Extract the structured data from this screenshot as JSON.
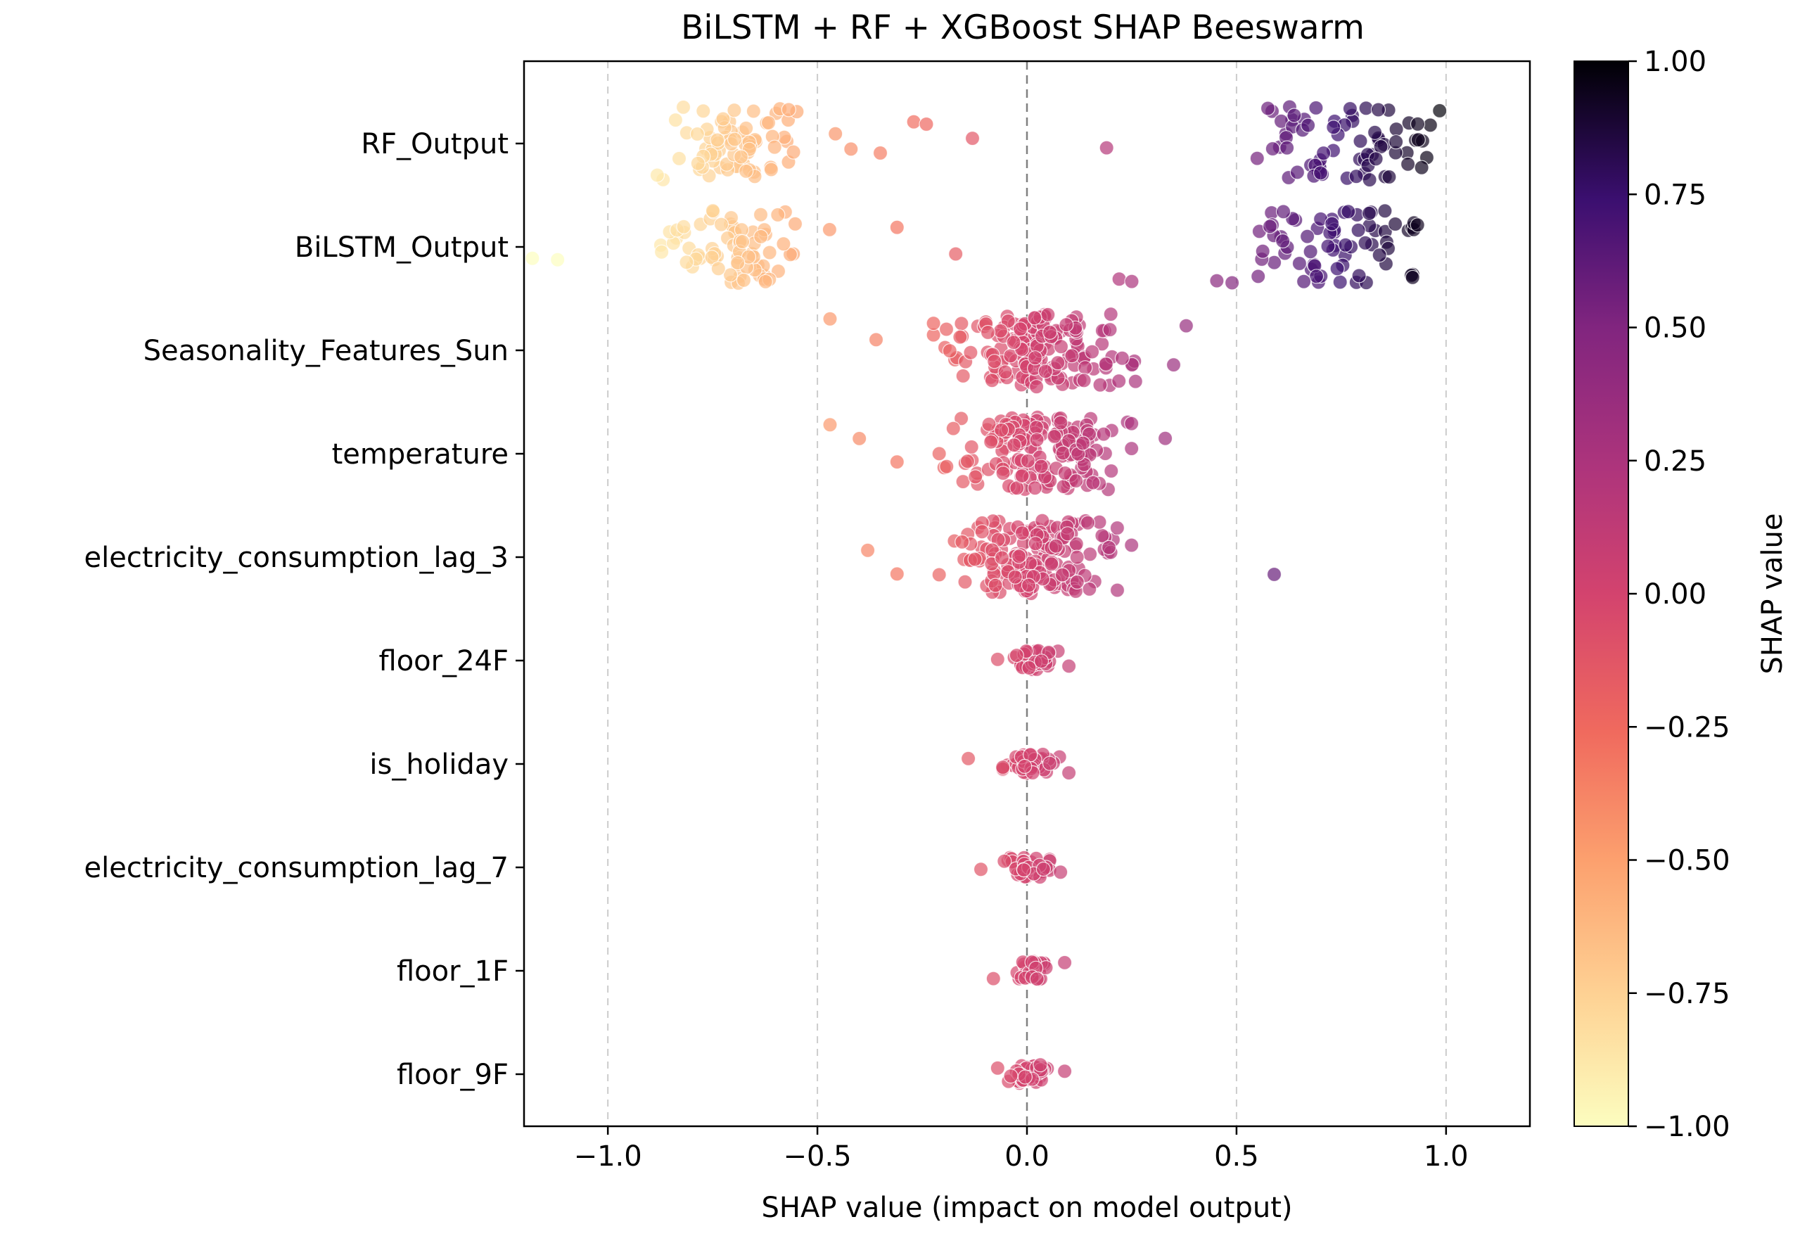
{
  "chart_data": {
    "type": "scatter",
    "subtype": "beeswarm",
    "title": "BiLSTM + RF + XGBoost SHAP Beeswarm",
    "xlabel": "SHAP value (impact on model output)",
    "ylabel": "",
    "xlim": [
      -1.2,
      1.2
    ],
    "xticks": [
      -1.0,
      -0.5,
      0.0,
      0.5,
      1.0
    ],
    "xtick_labels": [
      "−1.0",
      "−0.5",
      "0.0",
      "0.5",
      "1.0"
    ],
    "vertical_gridlines": [
      -1.0,
      -0.5,
      0.5,
      1.0
    ],
    "zero_line": 0.0,
    "colormap": "magma_r",
    "point_opacity": 0.7,
    "colorbar": {
      "label": "SHAP value",
      "range": [
        -1.0,
        1.0
      ],
      "ticks": [
        1.0,
        0.75,
        0.5,
        0.25,
        0.0,
        -0.25,
        -0.5,
        -0.75,
        -1.0
      ],
      "tick_labels": [
        "1.00",
        "0.75",
        "0.50",
        "0.25",
        "0.00",
        "−0.25",
        "−0.50",
        "−0.75",
        "−1.00"
      ]
    },
    "features": [
      {
        "name": "RF_Output",
        "n_points": 150,
        "clusters": [
          {
            "center": -0.7,
            "spread": 0.18,
            "weight": 0.5
          },
          {
            "center": 0.78,
            "spread": 0.22,
            "weight": 0.5
          }
        ],
        "outliers": [
          -0.42,
          -0.35,
          -0.27,
          -0.24,
          -0.13,
          0.19
        ]
      },
      {
        "name": "BiLSTM_Output",
        "n_points": 150,
        "clusters": [
          {
            "center": -0.7,
            "spread": 0.18,
            "weight": 0.5
          },
          {
            "center": 0.75,
            "spread": 0.22,
            "weight": 0.5
          }
        ],
        "outliers": [
          -1.18,
          -1.12,
          -0.31,
          -0.17,
          0.22,
          0.25
        ]
      },
      {
        "name": "Seasonality_Features_Sun",
        "n_points": 170,
        "clusters": [
          {
            "center": 0.02,
            "spread": 0.18,
            "weight": 1.0
          }
        ],
        "outliers": [
          -0.47,
          -0.36,
          0.35,
          0.38
        ]
      },
      {
        "name": "temperature",
        "n_points": 170,
        "clusters": [
          {
            "center": 0.02,
            "spread": 0.17,
            "weight": 1.0
          }
        ],
        "outliers": [
          -0.47,
          -0.4,
          -0.31,
          0.33
        ]
      },
      {
        "name": "electricity_consumption_lag_3",
        "n_points": 170,
        "clusters": [
          {
            "center": 0.02,
            "spread": 0.17,
            "weight": 1.0
          }
        ],
        "outliers": [
          -0.38,
          -0.31,
          0.59
        ]
      },
      {
        "name": "floor_24F",
        "n_points": 45,
        "clusters": [
          {
            "center": 0.02,
            "spread": 0.04,
            "weight": 1.0
          }
        ],
        "outliers": [
          -0.07,
          0.1
        ]
      },
      {
        "name": "is_holiday",
        "n_points": 50,
        "clusters": [
          {
            "center": 0.01,
            "spread": 0.05,
            "weight": 1.0
          }
        ],
        "outliers": [
          -0.14,
          0.1
        ]
      },
      {
        "name": "electricity_consumption_lag_7",
        "n_points": 45,
        "clusters": [
          {
            "center": 0.0,
            "spread": 0.04,
            "weight": 1.0
          }
        ],
        "outliers": [
          -0.11,
          0.08
        ]
      },
      {
        "name": "floor_1F",
        "n_points": 45,
        "clusters": [
          {
            "center": 0.01,
            "spread": 0.04,
            "weight": 1.0
          }
        ],
        "outliers": [
          -0.08,
          0.09
        ]
      },
      {
        "name": "floor_9F",
        "n_points": 45,
        "clusters": [
          {
            "center": 0.01,
            "spread": 0.04,
            "weight": 1.0
          }
        ],
        "outliers": [
          -0.07,
          0.09
        ]
      }
    ]
  }
}
